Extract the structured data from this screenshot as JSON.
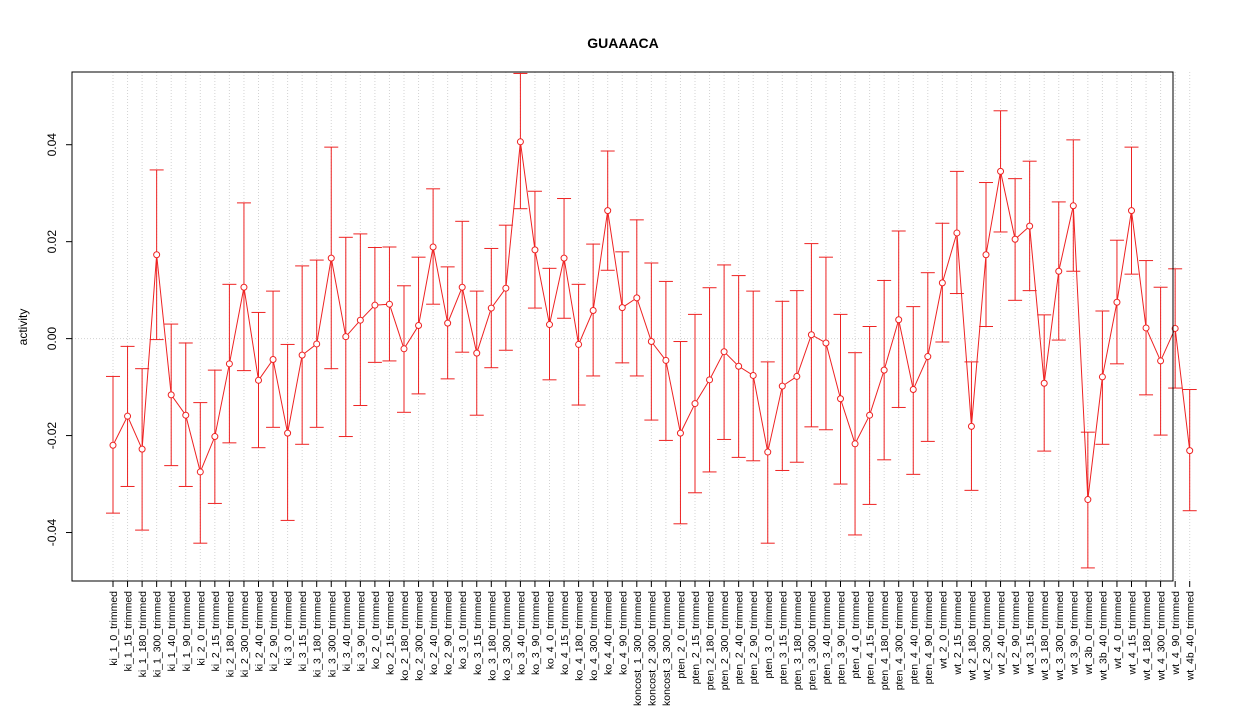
{
  "chart_data": {
    "type": "line",
    "title": "GUAAACA",
    "xlabel": "",
    "ylabel": "activity",
    "ylim": [
      -0.05,
      0.055
    ],
    "yticks": [
      -0.04,
      -0.02,
      0.0,
      0.02,
      0.04
    ],
    "ytick_labels": [
      "-0.04",
      "-0.02",
      "0.00",
      "0.02",
      "0.04"
    ],
    "grid": true,
    "legend": "none",
    "colors": {
      "series": "#ee2222",
      "grid": "#d3d3d3",
      "frame": "#000000"
    },
    "categories": [
      "ki_1_0_trimmed",
      "ki_1_15_trimmed",
      "ki_1_180_trimmed",
      "ki_1_300_trimmed",
      "ki_1_40_trimmed",
      "ki_1_90_trimmed",
      "ki_2_0_trimmed",
      "ki_2_15_trimmed",
      "ki_2_180_trimmed",
      "ki_2_300_trimmed",
      "ki_2_40_trimmed",
      "ki_2_90_trimmed",
      "ki_3_0_trimmed",
      "ki_3_15_trimmed",
      "ki_3_180_trimmed",
      "ki_3_300_trimmed",
      "ki_3_40_trimmed",
      "ki_3_90_trimmed",
      "ko_2_0_trimmed",
      "ko_2_15_trimmed",
      "ko_2_180_trimmed",
      "ko_2_300_trimmed",
      "ko_2_40_trimmed",
      "ko_2_90_trimmed",
      "ko_3_0_trimmed",
      "ko_3_15_trimmed",
      "ko_3_180_trimmed",
      "ko_3_300_trimmed",
      "ko_3_40_trimmed",
      "ko_3_90_trimmed",
      "ko_4_0_trimmed",
      "ko_4_15_trimmed",
      "ko_4_180_trimmed",
      "ko_4_300_trimmed",
      "ko_4_40_trimmed",
      "ko_4_90_trimmed",
      "koncost_1_300_trimmed",
      "koncost_2_300_trimmed",
      "koncost_3_300_trimmed",
      "pten_2_0_trimmed",
      "pten_2_15_trimmed",
      "pten_2_180_trimmed",
      "pten_2_300_trimmed",
      "pten_2_40_trimmed",
      "pten_2_90_trimmed",
      "pten_3_0_trimmed",
      "pten_3_15_trimmed",
      "pten_3_180_trimmed",
      "pten_3_300_trimmed",
      "pten_3_40_trimmed",
      "pten_3_90_trimmed",
      "pten_4_0_trimmed",
      "pten_4_15_trimmed",
      "pten_4_180_trimmed",
      "pten_4_300_trimmed",
      "pten_4_40_trimmed",
      "pten_4_90_trimmed",
      "wt_2_0_trimmed",
      "wt_2_15_trimmed",
      "wt_2_180_trimmed",
      "wt_2_300_trimmed",
      "wt_2_40_trimmed",
      "wt_2_90_trimmed",
      "wt_3_15_trimmed",
      "wt_3_180_trimmed",
      "wt_3_300_trimmed",
      "wt_3_90_trimmed",
      "wt_3b_0_trimmed",
      "wt_3b_40_trimmed",
      "wt_4_0_trimmed",
      "wt_4_15_trimmed",
      "wt_4_180_trimmed",
      "wt_4_300_trimmed",
      "wt_4_90_trimmed",
      "wt_4b_40_trimmed"
    ],
    "series": [
      {
        "values": [
          -0.022,
          -0.016,
          -0.0228,
          0.0173,
          -0.0116,
          -0.0158,
          -0.0275,
          -0.0202,
          -0.0052,
          0.0106,
          -0.0086,
          -0.0043,
          -0.0195,
          -0.0034,
          -0.0011,
          0.0166,
          0.0004,
          0.0038,
          0.0069,
          0.0071,
          -0.0021,
          0.0027,
          0.0189,
          0.0032,
          0.0106,
          -0.003,
          0.0063,
          0.0104,
          0.0406,
          0.0183,
          0.0029,
          0.0166,
          -0.0012,
          0.0058,
          0.0264,
          0.0064,
          0.0084,
          -0.0006,
          -0.0045,
          -0.0195,
          -0.0134,
          -0.0085,
          -0.0027,
          -0.0057,
          -0.0076,
          -0.0234,
          -0.0098,
          -0.0078,
          0.0008,
          -0.0009,
          -0.0124,
          -0.0217,
          -0.0158,
          -0.0065,
          0.0039,
          -0.0105,
          -0.0037,
          0.0115,
          0.0218,
          -0.0181,
          0.0173,
          0.0345,
          0.0205,
          0.0232,
          -0.0092,
          0.0139,
          0.0274,
          -0.0332,
          -0.0079,
          0.0075,
          0.0264,
          0.0022,
          -0.0046,
          0.0021,
          -0.0231
        ],
        "error_low": [
          -0.036,
          -0.0305,
          -0.0395,
          -0.0002,
          -0.0262,
          -0.0305,
          -0.0422,
          -0.034,
          -0.0215,
          -0.0066,
          -0.0225,
          -0.0183,
          -0.0375,
          -0.0218,
          -0.0183,
          -0.0062,
          -0.0202,
          -0.0138,
          -0.0049,
          -0.0046,
          -0.0152,
          -0.0114,
          0.0071,
          -0.0083,
          -0.0028,
          -0.0158,
          -0.006,
          -0.0024,
          0.0268,
          0.0063,
          -0.0085,
          0.0042,
          -0.0137,
          -0.0077,
          0.0141,
          -0.005,
          -0.0077,
          -0.0168,
          -0.021,
          -0.0382,
          -0.0318,
          -0.0275,
          -0.0208,
          -0.0245,
          -0.0252,
          -0.0422,
          -0.0272,
          -0.0255,
          -0.0182,
          -0.0188,
          -0.03,
          -0.0405,
          -0.0342,
          -0.025,
          -0.0142,
          -0.028,
          -0.0212,
          -0.0007,
          0.0093,
          -0.0313,
          0.0025,
          0.022,
          0.0079,
          0.0099,
          -0.0232,
          -0.0003,
          0.0139,
          -0.0473,
          -0.0218,
          -0.0052,
          0.0133,
          -0.0116,
          -0.0199,
          -0.0102,
          -0.0355
        ],
        "error_high": [
          -0.0078,
          -0.0016,
          -0.0062,
          0.0348,
          0.003,
          -0.0009,
          -0.0132,
          -0.0065,
          0.0112,
          0.028,
          0.0054,
          0.0098,
          -0.0012,
          0.015,
          0.0162,
          0.0395,
          0.0209,
          0.0216,
          0.0188,
          0.0189,
          0.0109,
          0.0168,
          0.0309,
          0.0148,
          0.0242,
          0.0098,
          0.0186,
          0.0234,
          0.0547,
          0.0304,
          0.0145,
          0.0289,
          0.0112,
          0.0195,
          0.0387,
          0.0179,
          0.0245,
          0.0156,
          0.0118,
          -0.0006,
          0.005,
          0.0105,
          0.0152,
          0.013,
          0.0098,
          -0.0048,
          0.0077,
          0.0099,
          0.0196,
          0.0168,
          0.005,
          -0.0029,
          0.0025,
          0.012,
          0.0222,
          0.0066,
          0.0136,
          0.0238,
          0.0345,
          -0.0048,
          0.0322,
          0.047,
          0.033,
          0.0366,
          0.0049,
          0.0282,
          0.041,
          -0.0193,
          0.0057,
          0.0203,
          0.0395,
          0.0161,
          0.0106,
          0.0144,
          -0.0105
        ]
      }
    ]
  }
}
